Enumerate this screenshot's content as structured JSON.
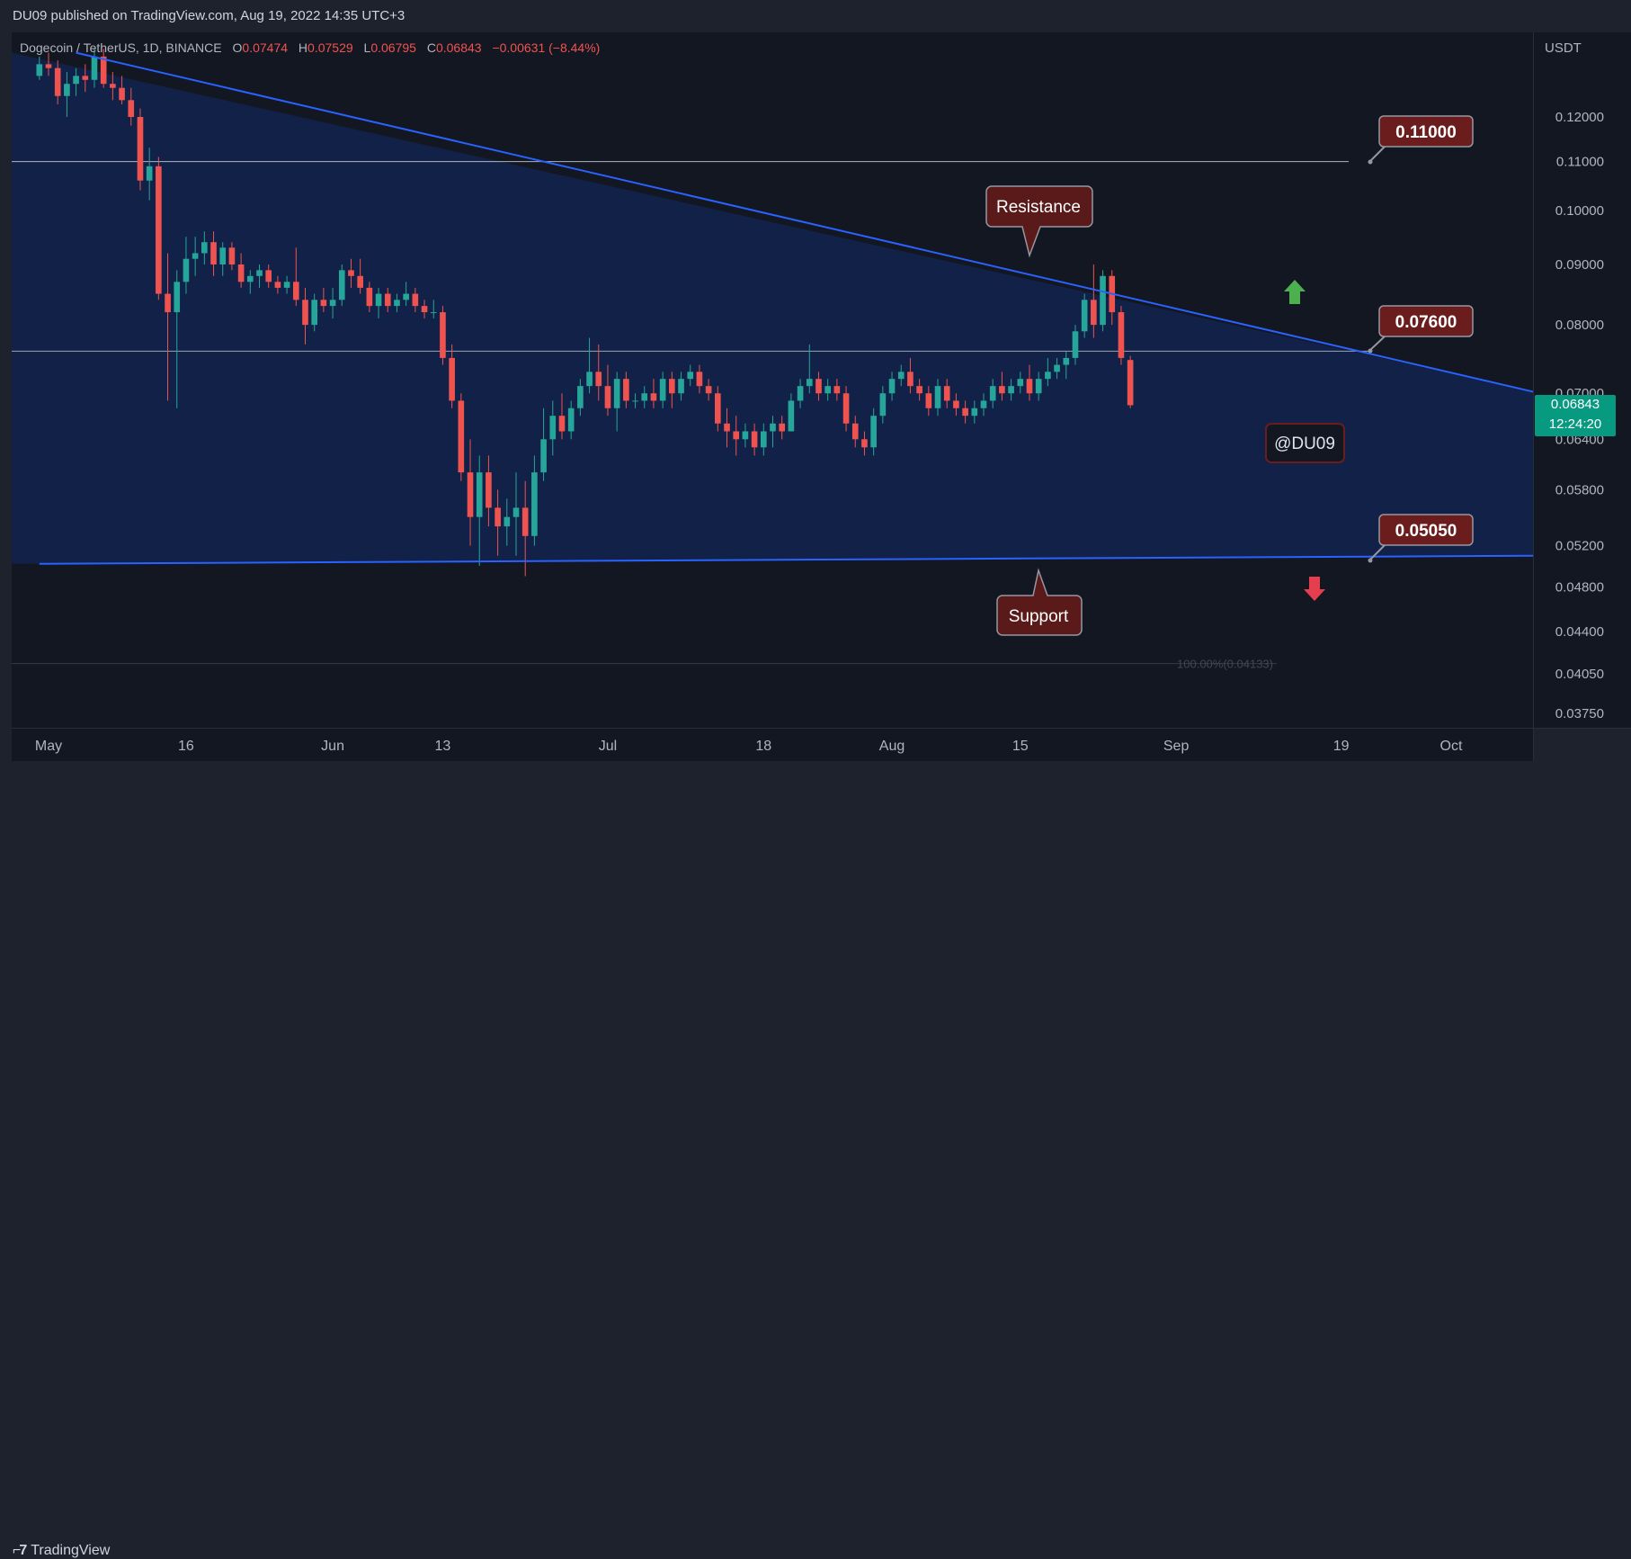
{
  "header": {
    "published": "DU09 published on TradingView.com, Aug 19, 2022 14:35 UTC+3"
  },
  "symbol_line": {
    "symbol": "Dogecoin / TetherUS, 1D, BINANCE",
    "o_label": "O",
    "o": "0.07474",
    "h_label": "H",
    "h": "0.07529",
    "l_label": "L",
    "l": "0.06795",
    "c_label": "C",
    "c": "0.06843",
    "change": "−0.00631 (−8.44%)"
  },
  "footer": {
    "brand": "TradingView"
  },
  "colors": {
    "background": "#131722",
    "triangle_fill": "#12224a",
    "trendline": "#2962ff",
    "up": "#26a69a",
    "down": "#ef5350",
    "callout": "#6b1d1d",
    "last_price": "#089981"
  },
  "annotations": {
    "resistance": "Resistance",
    "support": "Support",
    "watermark": "@DU09",
    "fib_label": "100.00%(0.04133)",
    "levels": [
      "0.11000",
      "0.07600",
      "0.05050"
    ]
  },
  "last_price": {
    "price": "0.06843",
    "countdown": "12:24:20"
  },
  "chart_data": {
    "type": "candlestick",
    "title": "Dogecoin / TetherUS, 1D, BINANCE",
    "y_axis_label": "USDT",
    "y_scale": "log",
    "y_ticks": [
      "0.12000",
      "0.11000",
      "0.10000",
      "0.09000",
      "0.08000",
      "0.07000",
      "0.06400",
      "0.05800",
      "0.05200",
      "0.04800",
      "0.04400",
      "0.04050",
      "0.03750"
    ],
    "x_ticks": [
      "May",
      "16",
      "Jun",
      "13",
      "Jul",
      "18",
      "Aug",
      "15",
      "Sep",
      "19",
      "Oct"
    ],
    "x_tick_dates": [
      "2022-05-01",
      "2022-05-16",
      "2022-06-01",
      "2022-06-13",
      "2022-07-01",
      "2022-07-18",
      "2022-08-01",
      "2022-08-15",
      "2022-09-01",
      "2022-09-19",
      "2022-10-01"
    ],
    "dates_start": "2022-04-30",
    "ohlc": [
      [
        0.13,
        0.135,
        0.129,
        0.133
      ],
      [
        0.133,
        0.136,
        0.13,
        0.132
      ],
      [
        0.132,
        0.134,
        0.123,
        0.125
      ],
      [
        0.125,
        0.131,
        0.12,
        0.128
      ],
      [
        0.128,
        0.132,
        0.125,
        0.13
      ],
      [
        0.13,
        0.133,
        0.126,
        0.129
      ],
      [
        0.129,
        0.137,
        0.127,
        0.135
      ],
      [
        0.135,
        0.137,
        0.127,
        0.128
      ],
      [
        0.128,
        0.131,
        0.124,
        0.127
      ],
      [
        0.127,
        0.13,
        0.123,
        0.124
      ],
      [
        0.124,
        0.127,
        0.118,
        0.12
      ],
      [
        0.12,
        0.122,
        0.104,
        0.106
      ],
      [
        0.106,
        0.113,
        0.102,
        0.109
      ],
      [
        0.109,
        0.111,
        0.084,
        0.085
      ],
      [
        0.085,
        0.092,
        0.069,
        0.082
      ],
      [
        0.082,
        0.089,
        0.068,
        0.087
      ],
      [
        0.087,
        0.095,
        0.085,
        0.091
      ],
      [
        0.091,
        0.095,
        0.088,
        0.092
      ],
      [
        0.092,
        0.096,
        0.09,
        0.094
      ],
      [
        0.094,
        0.096,
        0.088,
        0.09
      ],
      [
        0.09,
        0.094,
        0.088,
        0.093
      ],
      [
        0.093,
        0.094,
        0.089,
        0.09
      ],
      [
        0.09,
        0.092,
        0.086,
        0.087
      ],
      [
        0.087,
        0.089,
        0.085,
        0.088
      ],
      [
        0.088,
        0.09,
        0.086,
        0.089
      ],
      [
        0.089,
        0.09,
        0.086,
        0.087
      ],
      [
        0.087,
        0.088,
        0.085,
        0.086
      ],
      [
        0.086,
        0.088,
        0.085,
        0.087
      ],
      [
        0.087,
        0.093,
        0.083,
        0.084
      ],
      [
        0.084,
        0.086,
        0.077,
        0.08
      ],
      [
        0.08,
        0.085,
        0.079,
        0.084
      ],
      [
        0.084,
        0.086,
        0.082,
        0.083
      ],
      [
        0.083,
        0.086,
        0.081,
        0.084
      ],
      [
        0.084,
        0.09,
        0.083,
        0.089
      ],
      [
        0.089,
        0.091,
        0.086,
        0.088
      ],
      [
        0.088,
        0.091,
        0.085,
        0.086
      ],
      [
        0.086,
        0.087,
        0.082,
        0.083
      ],
      [
        0.083,
        0.086,
        0.081,
        0.085
      ],
      [
        0.085,
        0.086,
        0.082,
        0.083
      ],
      [
        0.083,
        0.085,
        0.082,
        0.084
      ],
      [
        0.084,
        0.087,
        0.083,
        0.085
      ],
      [
        0.085,
        0.086,
        0.082,
        0.083
      ],
      [
        0.083,
        0.084,
        0.081,
        0.082
      ],
      [
        0.082,
        0.084,
        0.081,
        0.082
      ],
      [
        0.082,
        0.083,
        0.074,
        0.075
      ],
      [
        0.075,
        0.077,
        0.068,
        0.069
      ],
      [
        0.069,
        0.07,
        0.059,
        0.06
      ],
      [
        0.06,
        0.064,
        0.052,
        0.055
      ],
      [
        0.055,
        0.062,
        0.05,
        0.06
      ],
      [
        0.06,
        0.062,
        0.054,
        0.056
      ],
      [
        0.056,
        0.058,
        0.051,
        0.054
      ],
      [
        0.054,
        0.057,
        0.052,
        0.055
      ],
      [
        0.055,
        0.06,
        0.051,
        0.056
      ],
      [
        0.056,
        0.059,
        0.049,
        0.053
      ],
      [
        0.053,
        0.062,
        0.052,
        0.06
      ],
      [
        0.06,
        0.068,
        0.059,
        0.064
      ],
      [
        0.064,
        0.069,
        0.062,
        0.067
      ],
      [
        0.067,
        0.07,
        0.064,
        0.065
      ],
      [
        0.065,
        0.069,
        0.064,
        0.068
      ],
      [
        0.068,
        0.072,
        0.067,
        0.071
      ],
      [
        0.071,
        0.078,
        0.07,
        0.073
      ],
      [
        0.073,
        0.077,
        0.069,
        0.071
      ],
      [
        0.071,
        0.074,
        0.067,
        0.068
      ],
      [
        0.068,
        0.073,
        0.065,
        0.072
      ],
      [
        0.072,
        0.073,
        0.068,
        0.069
      ],
      [
        0.069,
        0.07,
        0.068,
        0.069
      ],
      [
        0.069,
        0.071,
        0.068,
        0.07
      ],
      [
        0.07,
        0.072,
        0.068,
        0.069
      ],
      [
        0.069,
        0.073,
        0.068,
        0.072
      ],
      [
        0.072,
        0.073,
        0.068,
        0.07
      ],
      [
        0.07,
        0.073,
        0.069,
        0.072
      ],
      [
        0.072,
        0.074,
        0.071,
        0.073
      ],
      [
        0.073,
        0.074,
        0.07,
        0.071
      ],
      [
        0.071,
        0.072,
        0.069,
        0.07
      ],
      [
        0.07,
        0.071,
        0.065,
        0.066
      ],
      [
        0.066,
        0.068,
        0.063,
        0.065
      ],
      [
        0.065,
        0.067,
        0.062,
        0.064
      ],
      [
        0.064,
        0.066,
        0.063,
        0.065
      ],
      [
        0.065,
        0.066,
        0.062,
        0.063
      ],
      [
        0.063,
        0.066,
        0.062,
        0.065
      ],
      [
        0.065,
        0.067,
        0.063,
        0.066
      ],
      [
        0.066,
        0.067,
        0.064,
        0.065
      ],
      [
        0.065,
        0.07,
        0.065,
        0.069
      ],
      [
        0.069,
        0.072,
        0.068,
        0.071
      ],
      [
        0.071,
        0.077,
        0.07,
        0.072
      ],
      [
        0.072,
        0.073,
        0.069,
        0.07
      ],
      [
        0.07,
        0.072,
        0.069,
        0.071
      ],
      [
        0.071,
        0.072,
        0.069,
        0.07
      ],
      [
        0.07,
        0.071,
        0.065,
        0.066
      ],
      [
        0.066,
        0.067,
        0.063,
        0.064
      ],
      [
        0.064,
        0.065,
        0.062,
        0.063
      ],
      [
        0.063,
        0.068,
        0.062,
        0.067
      ],
      [
        0.067,
        0.071,
        0.066,
        0.07
      ],
      [
        0.07,
        0.073,
        0.069,
        0.072
      ],
      [
        0.072,
        0.074,
        0.071,
        0.073
      ],
      [
        0.073,
        0.075,
        0.07,
        0.071
      ],
      [
        0.071,
        0.072,
        0.069,
        0.07
      ],
      [
        0.07,
        0.071,
        0.067,
        0.068
      ],
      [
        0.068,
        0.072,
        0.067,
        0.071
      ],
      [
        0.071,
        0.072,
        0.068,
        0.069
      ],
      [
        0.069,
        0.07,
        0.067,
        0.068
      ],
      [
        0.068,
        0.069,
        0.066,
        0.067
      ],
      [
        0.067,
        0.069,
        0.066,
        0.068
      ],
      [
        0.068,
        0.07,
        0.067,
        0.069
      ],
      [
        0.069,
        0.072,
        0.068,
        0.071
      ],
      [
        0.071,
        0.073,
        0.069,
        0.07
      ],
      [
        0.07,
        0.072,
        0.069,
        0.071
      ],
      [
        0.071,
        0.073,
        0.07,
        0.072
      ],
      [
        0.072,
        0.074,
        0.069,
        0.07
      ],
      [
        0.07,
        0.073,
        0.069,
        0.072
      ],
      [
        0.072,
        0.075,
        0.071,
        0.073
      ],
      [
        0.073,
        0.075,
        0.072,
        0.074
      ],
      [
        0.074,
        0.076,
        0.072,
        0.075
      ],
      [
        0.075,
        0.08,
        0.074,
        0.079
      ],
      [
        0.079,
        0.085,
        0.078,
        0.084
      ],
      [
        0.084,
        0.09,
        0.078,
        0.08
      ],
      [
        0.08,
        0.089,
        0.079,
        0.088
      ],
      [
        0.088,
        0.089,
        0.08,
        0.082
      ],
      [
        0.082,
        0.083,
        0.074,
        0.075
      ],
      [
        0.0747,
        0.0753,
        0.068,
        0.0684
      ]
    ],
    "levels": [
      0.11,
      0.076,
      0.0505
    ],
    "fib_level": 0.04133,
    "resistance_line": {
      "from": [
        "2022-05-04",
        0.136
      ],
      "to": [
        "2022-10-10",
        0.0702
      ]
    },
    "support_line": {
      "from": [
        "2022-04-30",
        0.0502
      ],
      "to": [
        "2022-10-10",
        0.051
      ]
    },
    "last_price": 0.06843
  }
}
